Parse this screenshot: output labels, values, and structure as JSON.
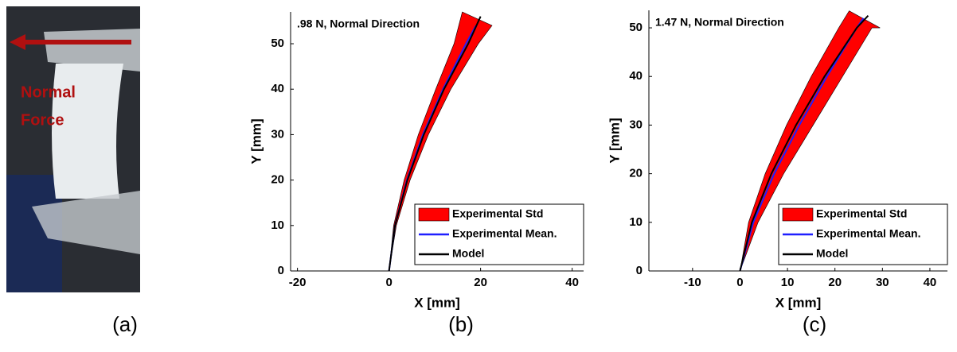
{
  "photo": {
    "label": "Normal Force",
    "panel": "(a)"
  },
  "panels": [
    "(b)",
    "(c)"
  ],
  "chart_data": [
    {
      "type": "line",
      "title": ".98 N, Normal Direction",
      "x_label": "X [mm]",
      "y_label": "Y [mm]",
      "xlim": [
        -21.5,
        42.5
      ],
      "ylim": [
        0,
        57
      ],
      "xticks": [
        -20,
        0,
        20,
        40
      ],
      "yticks": [
        0,
        10,
        20,
        30,
        40,
        50
      ],
      "legend": "lower right",
      "series": [
        {
          "name": "Experimental Std",
          "color": "#ff0000",
          "kind": "band",
          "x": [
            0,
            1.0,
            3.3,
            6.4,
            10.2,
            14.2,
            16
          ],
          "y": [
            0,
            10,
            20,
            30,
            40,
            50,
            57
          ],
          "x2": [
            0,
            1.6,
            4.6,
            8.6,
            13.5,
            19.5,
            22.5
          ],
          "y2": [
            0,
            10,
            20,
            30,
            40,
            50,
            54
          ]
        },
        {
          "name": "Experimental Mean.",
          "color": "#1f1fff",
          "x": [
            0,
            1.3,
            3.9,
            7.4,
            11.8,
            16.8,
            19
          ],
          "y": [
            0,
            10,
            20,
            30,
            40,
            50,
            54
          ]
        },
        {
          "name": "Model",
          "color": "#000000",
          "x": [
            0,
            1.3,
            4.0,
            7.6,
            12.0,
            17.3,
            20
          ],
          "y": [
            0,
            10,
            20,
            30,
            40,
            50,
            56
          ]
        }
      ]
    },
    {
      "type": "line",
      "title": "1.47 N, Normal Direction",
      "x_label": "X [mm]",
      "y_label": "Y [mm]",
      "xlim": [
        -19.2,
        43.7
      ],
      "ylim": [
        0,
        53.6
      ],
      "xticks": [
        -10,
        0,
        10,
        20,
        30,
        40
      ],
      "yticks": [
        0,
        10,
        20,
        30,
        40,
        50
      ],
      "legend": "lower right",
      "series": [
        {
          "name": "Experimental Std",
          "color": "#ff0000",
          "kind": "band",
          "x": [
            0,
            1.8,
            5.3,
            9.8,
            15.0,
            20.8,
            23
          ],
          "y": [
            0,
            10,
            20,
            30,
            40,
            50,
            53.5
          ],
          "x2": [
            0,
            3.8,
            9.2,
            15.4,
            21.6,
            27.8,
            29.5
          ],
          "y2": [
            0,
            10,
            20,
            30,
            40,
            50,
            50
          ]
        },
        {
          "name": "Experimental Mean.",
          "color": "#1f1fff",
          "x": [
            0,
            2.8,
            7.2,
            12.5,
            18.3,
            24.6,
            26
          ],
          "y": [
            0,
            10,
            20,
            30,
            40,
            50,
            52
          ]
        },
        {
          "name": "Model",
          "color": "#000000",
          "x": [
            0,
            2.5,
            6.6,
            11.8,
            17.8,
            24.6,
            27
          ],
          "y": [
            0,
            10,
            20,
            30,
            40,
            50,
            52.5
          ]
        }
      ]
    }
  ]
}
